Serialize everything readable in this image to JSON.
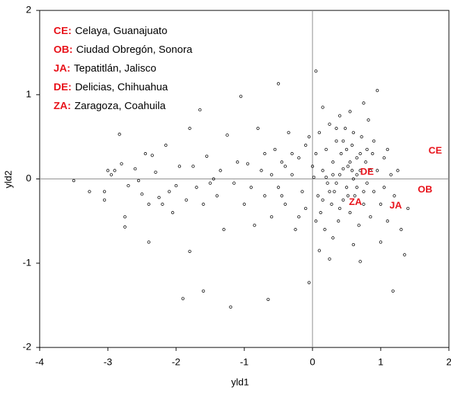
{
  "chart_data": {
    "type": "scatter",
    "x_label": "yld1",
    "y_label": "yld2",
    "xlim": [
      -4,
      2
    ],
    "ylim": [
      -2,
      2
    ],
    "xticks": [
      -4,
      -3,
      -2,
      -1,
      0,
      1,
      2
    ],
    "yticks": [
      -2,
      -1,
      0,
      1,
      2
    ],
    "reference_lines": true,
    "color": "#000000",
    "annotation_color": "#e8141c",
    "legend_notes": [
      {
        "code": "CE:",
        "name": "Celaya, Guanajuato"
      },
      {
        "code": "OB:",
        "name": "Ciudad Obregón, Sonora"
      },
      {
        "code": "JA:",
        "name": "Tepatitlán, Jalisco"
      },
      {
        "code": "DE:",
        "name": "Delicias, Chihuahua"
      },
      {
        "code": "ZA:",
        "name": "Zaragoza, Coahuila"
      }
    ],
    "annotations": [
      {
        "text": "CE",
        "x": 1.8,
        "y": 0.33
      },
      {
        "text": "OB",
        "x": 1.65,
        "y": -0.13
      },
      {
        "text": "JA",
        "x": 1.22,
        "y": -0.32
      },
      {
        "text": "DE",
        "x": 0.8,
        "y": 0.08
      },
      {
        "text": "ZA",
        "x": 0.63,
        "y": -0.28
      }
    ],
    "x": [
      -3.5,
      -3.27,
      -3.05,
      -3.05,
      -3.0,
      -2.95,
      -2.9,
      -2.83,
      -2.8,
      -2.75,
      -2.75,
      -2.7,
      -2.6,
      -2.55,
      -2.5,
      -2.45,
      -2.4,
      -2.4,
      -2.35,
      -2.3,
      -2.25,
      -2.2,
      -2.15,
      -2.1,
      -2.05,
      -2.0,
      -1.95,
      -1.9,
      -1.85,
      -1.8,
      -1.8,
      -1.75,
      -1.7,
      -1.65,
      -1.6,
      -1.6,
      -1.55,
      -1.5,
      -1.45,
      -1.4,
      -1.35,
      -1.3,
      -1.25,
      -1.2,
      -1.15,
      -1.1,
      -1.05,
      -1.0,
      -0.95,
      -0.9,
      -0.85,
      -0.8,
      -0.75,
      -0.7,
      -0.65,
      -0.6,
      -0.55,
      -0.5,
      -0.5,
      -0.45,
      -0.4,
      -0.35,
      -0.3,
      -0.25,
      -0.2,
      -0.15,
      -0.1,
      -0.05,
      0.02,
      0.05,
      0.08,
      0.1,
      0.12,
      0.15,
      0.18,
      0.2,
      0.22,
      0.25,
      0.28,
      0.3,
      0.32,
      0.35,
      0.38,
      0.4,
      0.42,
      0.45,
      0.48,
      0.5,
      0.52,
      0.55,
      0.58,
      0.6,
      0.62,
      0.65,
      0.68,
      0.7,
      0.72,
      0.75,
      0.78,
      0.8,
      0.82,
      0.85,
      0.88,
      0.9,
      0.95,
      1.0,
      1.05,
      1.1,
      1.15,
      1.2,
      1.25,
      1.3,
      1.35,
      1.18,
      0.05,
      0.15,
      0.4,
      0.75,
      0.95,
      0.7,
      0.25,
      0.6,
      1.0,
      0.3,
      0.1,
      0.55,
      0.2,
      0.35,
      0.45,
      0.5,
      0.6,
      0.65,
      0.4,
      0.3,
      0.85,
      0.9,
      1.1,
      0.15,
      0.05,
      0.0,
      -0.05,
      -0.1,
      -0.2,
      -0.3,
      -0.4,
      -0.45,
      -0.6,
      -0.7,
      0.58,
      0.52,
      0.7,
      0.45,
      0.25,
      0.65,
      0.55,
      0.35,
      0.8,
      0.75,
      1.05,
      1.4
    ],
    "values": [
      -0.02,
      -0.15,
      -0.15,
      -0.25,
      0.1,
      0.05,
      0.1,
      0.53,
      0.18,
      -0.45,
      -0.57,
      -0.08,
      0.12,
      -0.02,
      -0.18,
      0.3,
      -0.3,
      -0.75,
      0.28,
      0.08,
      -0.22,
      -0.3,
      0.4,
      -0.15,
      -0.4,
      -0.08,
      0.15,
      -1.42,
      -0.25,
      0.6,
      -0.86,
      0.15,
      -0.1,
      0.82,
      -0.3,
      -1.33,
      0.27,
      -0.05,
      0.0,
      -0.2,
      0.1,
      -0.6,
      0.52,
      -1.52,
      -0.05,
      0.2,
      0.98,
      -0.3,
      0.18,
      -0.1,
      -0.55,
      0.6,
      0.1,
      -0.2,
      -1.43,
      -0.45,
      0.35,
      1.13,
      -0.1,
      0.2,
      -0.3,
      0.55,
      0.05,
      -0.6,
      0.25,
      -0.15,
      0.4,
      -1.23,
      0.02,
      0.3,
      -0.2,
      0.55,
      -0.4,
      0.1,
      -0.6,
      0.35,
      -0.05,
      0.65,
      -0.3,
      0.2,
      -0.15,
      0.45,
      -0.5,
      0.05,
      0.3,
      -0.25,
      0.6,
      -0.1,
      0.15,
      -0.4,
      0.4,
      0.0,
      -0.2,
      0.25,
      -0.55,
      0.1,
      0.5,
      -0.3,
      0.2,
      -0.05,
      0.7,
      -0.45,
      0.3,
      -0.15,
      0.1,
      -0.3,
      0.25,
      -0.5,
      0.05,
      -0.2,
      0.1,
      -0.6,
      -0.9,
      -1.33,
      1.28,
      0.85,
      0.75,
      0.9,
      1.05,
      -0.98,
      -0.95,
      -0.78,
      -0.75,
      -0.7,
      -0.85,
      0.8,
      0.02,
      -0.05,
      0.12,
      0.35,
      0.55,
      -0.1,
      -0.35,
      0.05,
      0.1,
      0.45,
      0.35,
      -0.25,
      -0.5,
      0.15,
      0.5,
      -0.35,
      -0.45,
      0.3,
      0.15,
      -0.2,
      0.05,
      0.3,
      0.1,
      -0.2,
      0.3,
      0.45,
      -0.15,
      0.05,
      0.2,
      0.6,
      0.35,
      -0.15,
      -0.1,
      -0.35
    ]
  }
}
